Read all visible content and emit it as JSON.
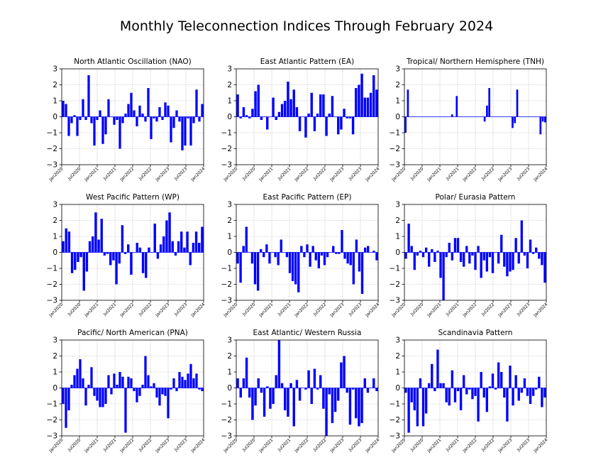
{
  "figure_title": "Monthly Teleconnection Indices Through February 2024",
  "colors": {
    "bar": "#0000ff",
    "grid": "#b0b0b0",
    "axis": "#000000"
  },
  "chart_data": [
    {
      "type": "bar",
      "title": "North Atlantic Oscillation (NAO)",
      "ylim": [
        -3,
        3
      ],
      "yticks": [
        -3,
        -2,
        -1,
        0,
        1,
        2,
        3
      ],
      "xticks": [
        "Jan2020",
        "Jul2020",
        "Jan2021",
        "Jul2021",
        "Jan2022",
        "Jul2022",
        "Jan2023",
        "Jul2023",
        "Jan2024"
      ],
      "values": [
        1.0,
        0.8,
        -1.2,
        -0.4,
        0.1,
        -1.2,
        -0.2,
        1.1,
        -0.2,
        2.6,
        -0.4,
        -1.8,
        -0.2,
        0.4,
        -1.7,
        -1.1,
        1.1,
        0.0,
        -0.5,
        -0.2,
        -2.0,
        -0.4,
        0.2,
        0.8,
        1.5,
        0.4,
        -0.6,
        0.7,
        0.2,
        -0.3,
        1.8,
        -1.4,
        -0.1,
        -0.3,
        0.6,
        -0.2,
        0.9,
        0.7,
        -1.6,
        -0.7,
        0.4,
        -0.3,
        -2.1,
        -1.8,
        -0.1,
        -1.8,
        -0.4,
        1.7,
        -0.3,
        0.8
      ],
      "grid": true
    },
    {
      "type": "bar",
      "title": "East Atlantic Pattern (EA)",
      "ylim": [
        -3,
        3
      ],
      "yticks": [
        -3,
        -2,
        -1,
        0,
        1,
        2,
        3
      ],
      "xticks": [
        "Jan2020",
        "Jul2020",
        "Jan2021",
        "Jul2021",
        "Jan2022",
        "Jul2022",
        "Jan2023",
        "Jul2023",
        "Jan2024"
      ],
      "values": [
        1.4,
        -0.1,
        0.6,
        0.1,
        -0.1,
        0.5,
        1.6,
        2.0,
        -0.2,
        0.0,
        -0.8,
        0.0,
        1.2,
        -0.2,
        0.3,
        0.8,
        1.0,
        2.2,
        1.1,
        1.7,
        0.6,
        -0.9,
        0.0,
        -1.3,
        0.2,
        1.5,
        -0.9,
        0.2,
        1.4,
        1.4,
        -1.2,
        0.2,
        1.3,
        0.0,
        -1.1,
        -0.8,
        0.5,
        -0.1,
        -0.1,
        -1.1,
        1.8,
        2.0,
        2.7,
        1.2,
        1.2,
        1.5,
        2.6,
        1.7
      ],
      "grid": true
    },
    {
      "type": "bar",
      "title": "Tropical/ Northern Hemisphere (TNH)",
      "ylim": [
        -3,
        3
      ],
      "yticks": [
        -3,
        -2,
        -1,
        0,
        1,
        2,
        3
      ],
      "xticks": [
        "Jan2020",
        "Jul2020",
        "Jan2021",
        "Jul2021",
        "Jan2022",
        "Jul2022",
        "Jan2023",
        "Jul2023",
        "Jan2024"
      ],
      "values": [
        -1.0,
        1.7,
        0,
        0,
        0,
        0,
        0,
        0,
        0,
        0,
        0,
        0,
        0,
        0,
        0,
        0,
        0,
        0,
        0,
        0,
        0.15,
        0.0,
        1.3,
        0,
        0,
        0,
        0,
        0,
        0,
        0,
        0,
        0,
        0,
        0,
        -0.3,
        0.7,
        1.8,
        0,
        0,
        0,
        0,
        0,
        0,
        0,
        0,
        0,
        -0.7,
        -0.4,
        1.7,
        0,
        0,
        0,
        0,
        0,
        0,
        0,
        0,
        0,
        -1.1,
        -0.3,
        -0.35
      ],
      "grid": true
    },
    {
      "type": "bar",
      "title": "West Pacific Pattern (WP)",
      "ylim": [
        -3,
        3
      ],
      "yticks": [
        -3,
        -2,
        -1,
        0,
        1,
        2,
        3
      ],
      "xticks": [
        "Jan2020",
        "Jul2020",
        "Jan2021",
        "Jul2021",
        "Jan2022",
        "Jul2022",
        "Jan2023",
        "Jul2023",
        "Jan2024"
      ],
      "values": [
        0.7,
        1.5,
        1.3,
        -1.3,
        -1.1,
        -0.6,
        -0.3,
        -2.4,
        -1.2,
        0.7,
        1.0,
        2.5,
        0.8,
        2.1,
        -0.2,
        -0.1,
        -0.8,
        -0.5,
        -2.0,
        -0.7,
        1.7,
        -0.1,
        0.5,
        -1.4,
        0.0,
        0.6,
        0.3,
        -1.3,
        -1.6,
        0.3,
        0.0,
        1.8,
        -0.4,
        0.5,
        1.0,
        2.0,
        2.5,
        0.7,
        -0.2,
        0.7,
        1.3,
        0.3,
        1.3,
        -0.8,
        0.6,
        1.3,
        0.6,
        1.6
      ],
      "grid": true
    },
    {
      "type": "bar",
      "title": "East Pacific Pattern (EP)",
      "ylim": [
        -3,
        3
      ],
      "yticks": [
        -3,
        -2,
        -1,
        0,
        1,
        2,
        3
      ],
      "xticks": [
        "Jan2020",
        "Jul2020",
        "Jan2021",
        "Jul2021",
        "Jan2022",
        "Jul2022",
        "Jan2023",
        "Jul2023",
        "Jan2024"
      ],
      "values": [
        -0.7,
        -1.9,
        0.4,
        1.6,
        0.0,
        -0.7,
        -2.0,
        -2.4,
        0.2,
        -0.3,
        0.5,
        -0.7,
        0.0,
        -0.3,
        -0.8,
        0.8,
        0.0,
        -0.3,
        -1.3,
        -1.8,
        -2.0,
        -2.5,
        0.4,
        -0.3,
        0.5,
        -0.9,
        0.4,
        -0.5,
        -1.0,
        -0.2,
        -0.8,
        -0.3,
        0.0,
        0.4,
        -0.1,
        -0.1,
        1.4,
        -0.4,
        -0.7,
        -0.8,
        -2.0,
        0.8,
        -1.2,
        -2.6,
        0.3,
        0.4,
        0.0,
        0.1,
        -0.5
      ],
      "grid": true
    },
    {
      "type": "bar",
      "title": "Polar/ Eurasia Pattern",
      "ylim": [
        -3,
        3
      ],
      "yticks": [
        -3,
        -2,
        -1,
        0,
        1,
        2,
        3
      ],
      "xticks": [
        "Jan2020",
        "Jul2020",
        "Jan2021",
        "Jul2021",
        "Jan2022",
        "Jul2022",
        "Jan2023",
        "Jul2023",
        "Jan2024"
      ],
      "values": [
        -0.4,
        1.8,
        0.4,
        -1.1,
        -0.2,
        0.1,
        -0.3,
        0.3,
        -0.9,
        0.2,
        -0.6,
        0.1,
        -1.6,
        -3.0,
        -0.3,
        0.6,
        -0.5,
        0.9,
        0.9,
        -0.6,
        -0.9,
        0.4,
        -0.7,
        -0.2,
        -1.1,
        0.4,
        -1.6,
        -0.5,
        -1.2,
        -0.3,
        -1.3,
        0.0,
        -0.7,
        1.1,
        -0.9,
        -1.5,
        -1.2,
        -1.1,
        0.9,
        -0.7,
        2.0,
        -0.2,
        -1.0,
        0.8,
        -0.1,
        0.3,
        -0.4,
        -0.8,
        -1.9
      ],
      "grid": true
    },
    {
      "type": "bar",
      "title": "Pacific/ North American (PNA)",
      "ylim": [
        -3,
        3
      ],
      "yticks": [
        -3,
        -2,
        -1,
        0,
        1,
        2,
        3
      ],
      "xticks": [
        "Jan2020",
        "Jul2020",
        "Jan2021",
        "Jul2021",
        "Jan2022",
        "Jul2022",
        "Jan2023",
        "Jul2023",
        "Jan2024"
      ],
      "values": [
        -1.0,
        -2.5,
        -1.4,
        0.2,
        0.8,
        1.2,
        1.8,
        0.6,
        -1.1,
        0.2,
        1.3,
        -0.5,
        -0.8,
        -1.2,
        -1.2,
        -1.0,
        0.8,
        -0.4,
        0.9,
        0.2,
        1.0,
        0.7,
        -2.8,
        0.7,
        0.6,
        -0.2,
        -0.9,
        -0.5,
        0.2,
        2.0,
        0.8,
        0.1,
        0.3,
        -0.6,
        -1.1,
        -0.4,
        -0.5,
        -1.9,
        -0.1,
        0.6,
        -0.2,
        1.0,
        0.7,
        0.5,
        0.9,
        1.5,
        0.6,
        0.9,
        -0.1,
        -0.2
      ],
      "grid": true
    },
    {
      "type": "bar",
      "title": "East Atlantic/ Western Russia",
      "ylim": [
        -3,
        3
      ],
      "yticks": [
        -3,
        -2,
        -1,
        0,
        1,
        2,
        3
      ],
      "xticks": [
        "Jan2020",
        "Jul2020",
        "Jan2021",
        "Jul2021",
        "Jan2022",
        "Jul2022",
        "Jan2023",
        "Jul2023",
        "Jan2024"
      ],
      "values": [
        0.6,
        -0.6,
        0.6,
        1.9,
        -0.6,
        -2.0,
        -1.1,
        0.6,
        -0.3,
        -1.8,
        0.1,
        -1.3,
        -1.0,
        0.8,
        3.0,
        0.3,
        -1.4,
        -1.8,
        0.3,
        -2.4,
        0.5,
        -0.8,
        0.0,
        -0.1,
        1.1,
        -1.0,
        1.2,
        -0.1,
        0.8,
        -1.3,
        -3.1,
        -0.4,
        -2.2,
        -1.5,
        -0.8,
        1.6,
        2.0,
        -0.3,
        -2.3,
        -0.1,
        -1.9,
        -2.4,
        -2.2,
        0.6,
        -0.3,
        0.0,
        0.6,
        -0.2
      ],
      "grid": true
    },
    {
      "type": "bar",
      "title": "Scandinavia Pattern",
      "ylim": [
        -3,
        3
      ],
      "yticks": [
        -3,
        -2,
        -1,
        0,
        1,
        2,
        3
      ],
      "xticks": [
        "Jan2020",
        "Jul2020",
        "Jan2021",
        "Jul2021",
        "Jan2022",
        "Jul2022",
        "Jan2023",
        "Jul2023",
        "Jan2024"
      ],
      "values": [
        -0.3,
        -2.8,
        -0.9,
        -1.4,
        -2.4,
        0.6,
        -2.4,
        -1.6,
        0.3,
        1.5,
        -0.2,
        2.4,
        0.3,
        0.3,
        -0.9,
        -1.1,
        1.1,
        -0.9,
        -0.2,
        -1.4,
        0.8,
        -0.4,
        -0.1,
        -0.7,
        -0.5,
        -2.1,
        1.0,
        -0.6,
        -1.5,
        0.1,
        0.9,
        -0.1,
        1.6,
        1.0,
        -0.6,
        -2.1,
        1.4,
        -1.1,
        0.8,
        -0.8,
        -0.3,
        0.6,
        -0.5,
        -1.0,
        -0.5,
        -0.1,
        0.7,
        -1.2,
        -0.6
      ],
      "grid": true
    }
  ]
}
